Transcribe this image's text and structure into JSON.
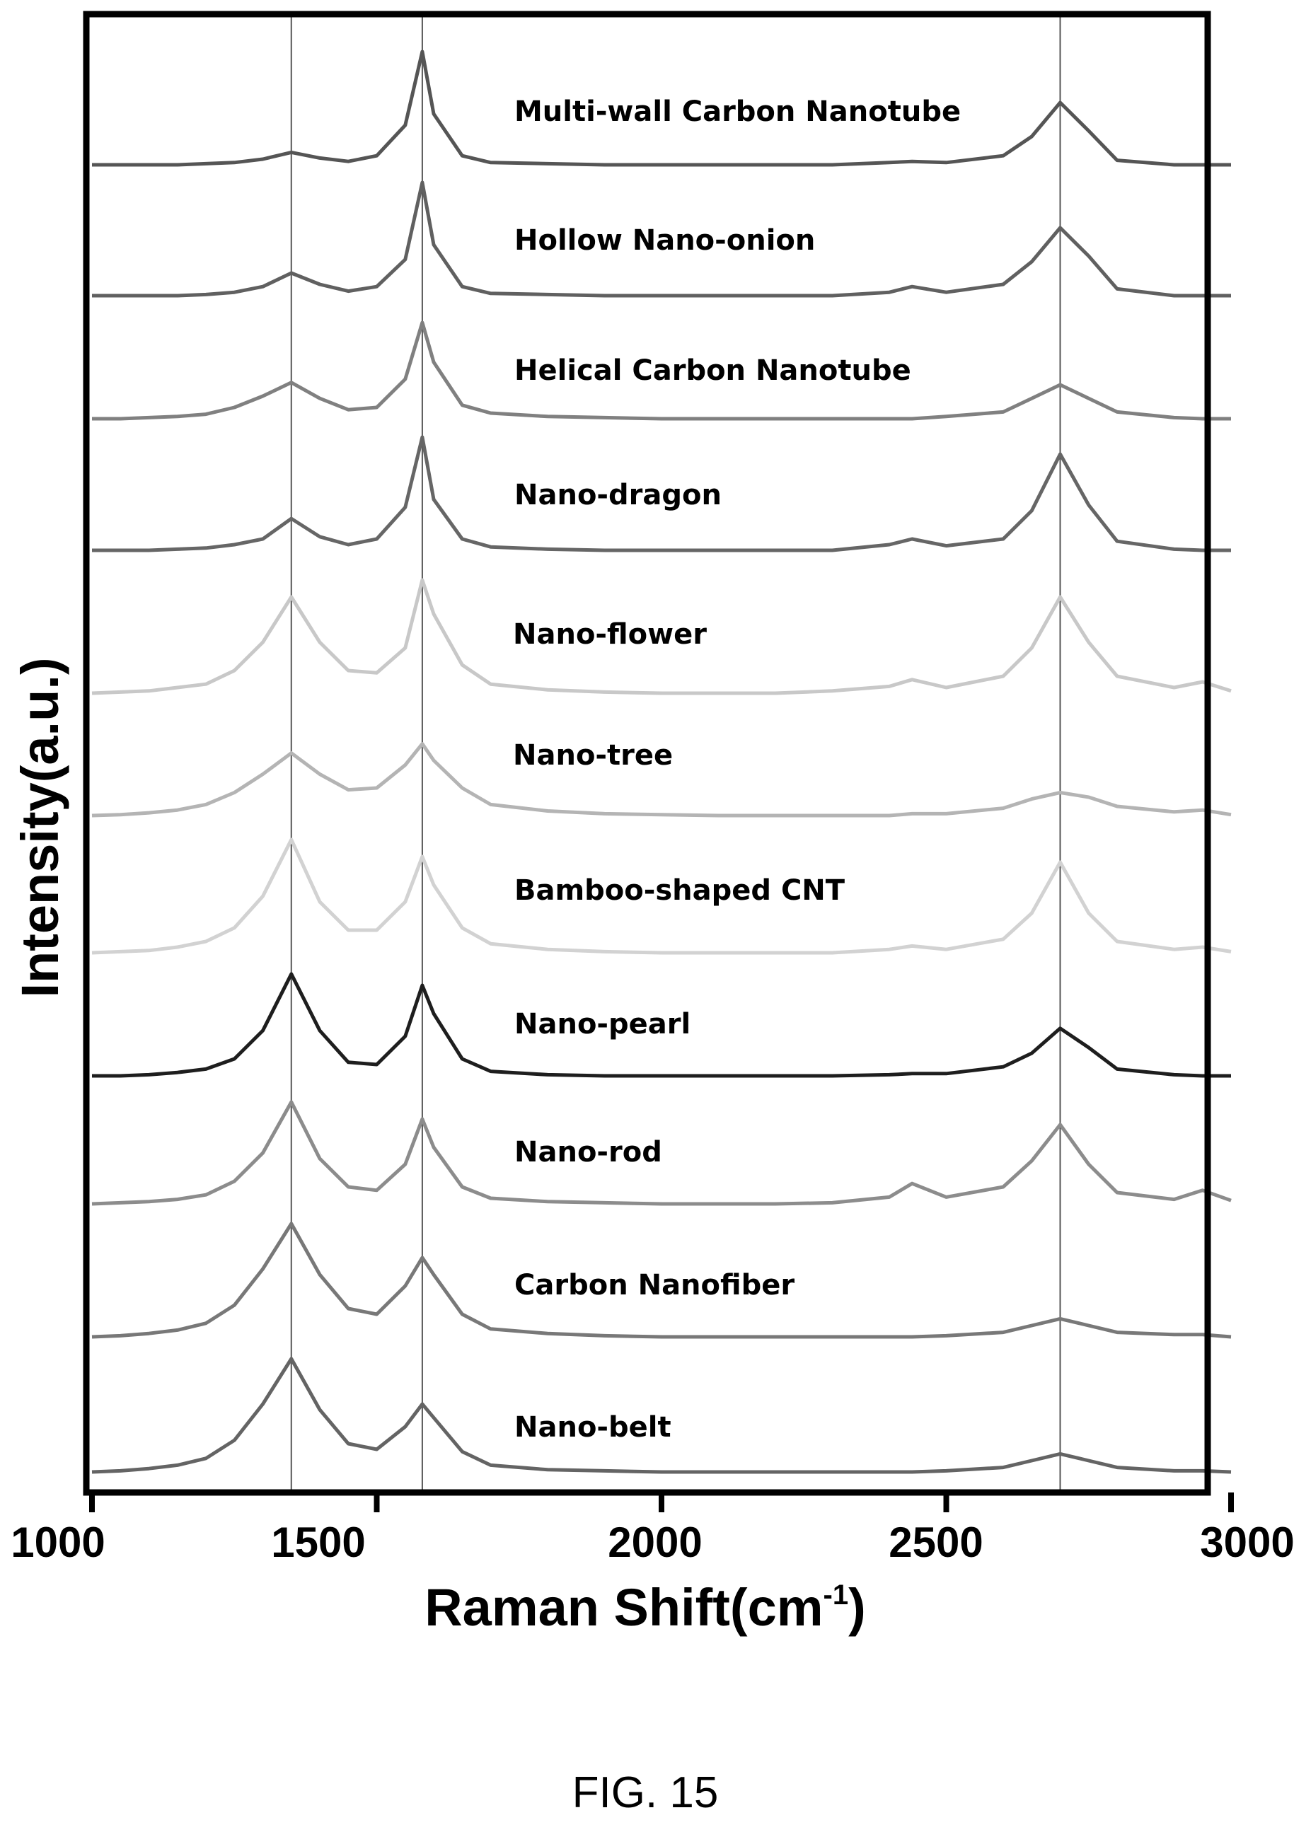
{
  "figure": {
    "caption": "FIG. 15"
  },
  "chart_data": {
    "type": "line",
    "title": "",
    "xlabel": "Raman Shift(cm",
    "xlabel_sup": "-1",
    "xlabel_close": ")",
    "ylabel": "Intensity(a.u.)",
    "xlim": [
      1000,
      3000
    ],
    "xticks": [
      1000,
      1500,
      2000,
      2500,
      3000
    ],
    "yticks": [],
    "legend": "none",
    "grid": false,
    "reference_lines": [
      1350,
      1580,
      2700
    ],
    "x": [
      1000,
      1050,
      1100,
      1150,
      1200,
      1250,
      1300,
      1350,
      1400,
      1450,
      1500,
      1550,
      1580,
      1600,
      1650,
      1700,
      1800,
      1900,
      2000,
      2100,
      2200,
      2300,
      2400,
      2440,
      2500,
      2600,
      2650,
      2700,
      2750,
      2800,
      2900,
      2950,
      3000
    ],
    "series": [
      {
        "name": "Multi-wall Carbon Nanotube",
        "color": "#555555",
        "values": [
          0.0,
          0.0,
          0.0,
          0.0,
          0.01,
          0.02,
          0.05,
          0.11,
          0.06,
          0.03,
          0.08,
          0.35,
          1.0,
          0.45,
          0.08,
          0.02,
          0.01,
          0.0,
          0.0,
          0.0,
          0.0,
          0.0,
          0.02,
          0.03,
          0.02,
          0.08,
          0.25,
          0.55,
          0.3,
          0.04,
          0.0,
          0.0,
          0.0
        ]
      },
      {
        "name": "Hollow Nano-onion",
        "color": "#606060",
        "values": [
          0.0,
          0.0,
          0.0,
          0.0,
          0.01,
          0.03,
          0.08,
          0.2,
          0.1,
          0.04,
          0.08,
          0.32,
          1.0,
          0.45,
          0.08,
          0.02,
          0.01,
          0.0,
          0.0,
          0.0,
          0.0,
          0.0,
          0.03,
          0.08,
          0.03,
          0.1,
          0.3,
          0.6,
          0.35,
          0.06,
          0.0,
          0.0,
          0.0
        ]
      },
      {
        "name": "Helical Carbon Nanotube",
        "color": "#808080",
        "values": [
          0.0,
          0.0,
          0.01,
          0.02,
          0.04,
          0.1,
          0.2,
          0.32,
          0.18,
          0.08,
          0.1,
          0.35,
          0.85,
          0.5,
          0.12,
          0.05,
          0.02,
          0.01,
          0.0,
          0.0,
          0.0,
          0.0,
          0.0,
          0.0,
          0.02,
          0.06,
          0.18,
          0.3,
          0.18,
          0.06,
          0.01,
          0.0,
          0.0
        ]
      },
      {
        "name": "Nano-dragon",
        "color": "#666666",
        "values": [
          0.0,
          0.0,
          0.0,
          0.01,
          0.02,
          0.05,
          0.1,
          0.28,
          0.12,
          0.05,
          0.1,
          0.38,
          1.0,
          0.45,
          0.1,
          0.03,
          0.01,
          0.0,
          0.0,
          0.0,
          0.0,
          0.0,
          0.05,
          0.1,
          0.04,
          0.1,
          0.35,
          0.85,
          0.4,
          0.08,
          0.01,
          0.0,
          0.0
        ]
      },
      {
        "name": "Nano-flower",
        "color": "#c8c8c8",
        "values": [
          0.0,
          0.01,
          0.02,
          0.05,
          0.08,
          0.2,
          0.45,
          0.85,
          0.45,
          0.2,
          0.18,
          0.4,
          1.0,
          0.7,
          0.25,
          0.08,
          0.03,
          0.01,
          0.0,
          0.0,
          0.0,
          0.02,
          0.06,
          0.12,
          0.05,
          0.15,
          0.4,
          0.85,
          0.45,
          0.15,
          0.05,
          0.1,
          0.02
        ]
      },
      {
        "name": "Nano-tree",
        "color": "#b4b4b4",
        "values": [
          0.0,
          0.01,
          0.03,
          0.06,
          0.12,
          0.25,
          0.45,
          0.68,
          0.45,
          0.28,
          0.3,
          0.55,
          0.78,
          0.6,
          0.3,
          0.12,
          0.05,
          0.02,
          0.01,
          0.0,
          0.0,
          0.0,
          0.0,
          0.02,
          0.02,
          0.08,
          0.18,
          0.25,
          0.2,
          0.1,
          0.04,
          0.06,
          0.01
        ]
      },
      {
        "name": "Bamboo-shaped CNT",
        "color": "#d2d2d2",
        "values": [
          0.0,
          0.01,
          0.02,
          0.05,
          0.1,
          0.22,
          0.5,
          1.0,
          0.45,
          0.2,
          0.2,
          0.45,
          0.85,
          0.6,
          0.22,
          0.08,
          0.03,
          0.01,
          0.0,
          0.0,
          0.0,
          0.0,
          0.03,
          0.06,
          0.03,
          0.12,
          0.35,
          0.8,
          0.35,
          0.1,
          0.03,
          0.05,
          0.01
        ]
      },
      {
        "name": "Nano-pearl",
        "color": "#1e1e1e",
        "values": [
          0.0,
          0.0,
          0.01,
          0.03,
          0.06,
          0.15,
          0.4,
          0.9,
          0.4,
          0.12,
          0.1,
          0.35,
          0.8,
          0.55,
          0.15,
          0.04,
          0.01,
          0.0,
          0.0,
          0.0,
          0.0,
          0.0,
          0.01,
          0.02,
          0.02,
          0.08,
          0.2,
          0.42,
          0.25,
          0.06,
          0.01,
          0.0,
          0.0
        ]
      },
      {
        "name": "Nano-rod",
        "color": "#8c8c8c",
        "values": [
          0.0,
          0.01,
          0.02,
          0.04,
          0.08,
          0.2,
          0.45,
          0.9,
          0.4,
          0.15,
          0.12,
          0.35,
          0.75,
          0.5,
          0.15,
          0.05,
          0.02,
          0.01,
          0.0,
          0.0,
          0.0,
          0.01,
          0.06,
          0.18,
          0.06,
          0.15,
          0.38,
          0.7,
          0.35,
          0.1,
          0.04,
          0.12,
          0.03
        ]
      },
      {
        "name": "Carbon Nanofiber",
        "color": "#787878",
        "values": [
          0.0,
          0.01,
          0.03,
          0.06,
          0.12,
          0.28,
          0.6,
          1.0,
          0.55,
          0.25,
          0.2,
          0.45,
          0.7,
          0.55,
          0.2,
          0.07,
          0.03,
          0.01,
          0.0,
          0.0,
          0.0,
          0.0,
          0.0,
          0.0,
          0.01,
          0.04,
          0.1,
          0.16,
          0.1,
          0.04,
          0.02,
          0.02,
          0.0
        ]
      },
      {
        "name": "Nano-belt",
        "color": "#646464",
        "values": [
          0.0,
          0.01,
          0.03,
          0.06,
          0.12,
          0.28,
          0.6,
          1.0,
          0.55,
          0.25,
          0.2,
          0.4,
          0.6,
          0.48,
          0.18,
          0.06,
          0.02,
          0.01,
          0.0,
          0.0,
          0.0,
          0.0,
          0.0,
          0.0,
          0.01,
          0.04,
          0.1,
          0.16,
          0.1,
          0.04,
          0.01,
          0.01,
          0.0
        ]
      }
    ]
  }
}
